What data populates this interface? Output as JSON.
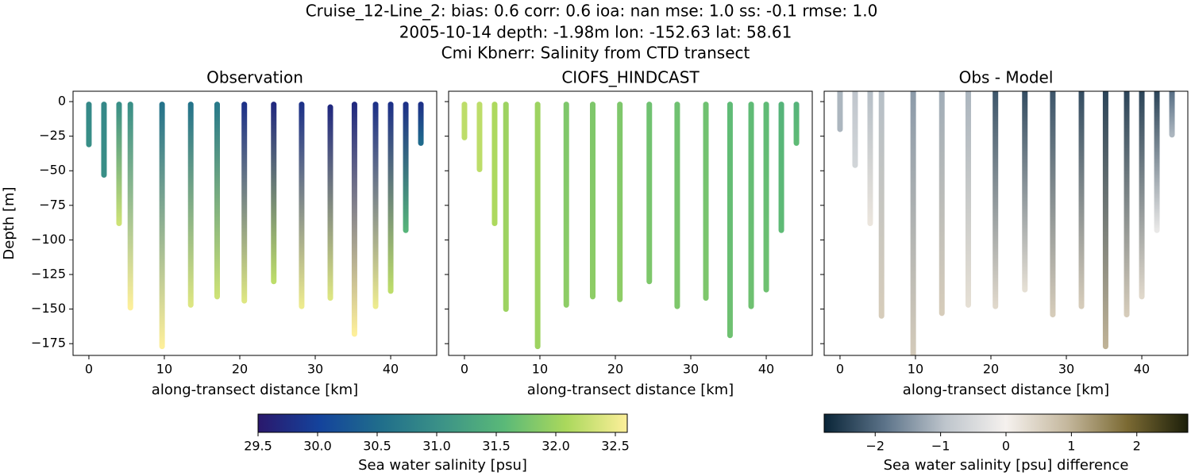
{
  "suptitle": [
    "Cruise_12-Line_2: bias: 0.6  corr: 0.6  ioa: nan  mse: 1.0  ss: -0.1  rmse: 1.0",
    "2005-10-14 depth: -1.98m lon: -152.63 lat: 58.61",
    "Cmi Kbnerr: Salinity from CTD transect"
  ],
  "colorbars": [
    {
      "label": "Sea water salinity [psu]",
      "lim": [
        29.5,
        32.6
      ],
      "colors": [
        "#2a186c",
        "#14439c",
        "#206e8b",
        "#3c9387",
        "#5ab978",
        "#aad85c",
        "#fdef9a"
      ],
      "ticks": [
        29.5,
        {
          "value": 30,
          "label": "30.0"
        },
        30.5,
        {
          "value": 31,
          "label": "31.0"
        },
        31.5,
        {
          "value": 32,
          "label": "32.0"
        },
        32.5
      ]
    },
    {
      "label": "Sea water salinity [psu] difference",
      "lim": [
        -2.78,
        2.78
      ],
      "colors": [
        "#0a2538",
        "#5c7389",
        "#bec5cc",
        "#f5f1ee",
        "#c5b89e",
        "#7b6a33",
        "#1c1f0a"
      ],
      "ticks": [
        {
          "value": -2,
          "label": "−2"
        },
        {
          "value": -1,
          "label": "−1"
        },
        0,
        1,
        2
      ]
    }
  ],
  "chart_data": [
    {
      "type": "scatter",
      "title": "Observation",
      "xlabel": "along-transect distance [km]",
      "ylabel": "Depth [m]",
      "colorbar": 0,
      "x": [
        0,
        2,
        4,
        5.5,
        9.7,
        13.5,
        17,
        20.6,
        24.5,
        28.2,
        32,
        35.2,
        38,
        40,
        42,
        44
      ],
      "top": [
        -2,
        -2,
        -2,
        -2,
        -2,
        -2,
        -2,
        -2,
        -2,
        -2,
        -4,
        -2,
        -2,
        -2,
        -2,
        -2
      ],
      "bottom": [
        -31,
        -53,
        -88,
        -149,
        -177,
        -147,
        -141,
        -144,
        -130,
        -148,
        -142,
        -168,
        -148,
        -137,
        -93,
        -30
      ],
      "values_top": [
        30.9,
        30.9,
        31.0,
        31.0,
        30.6,
        30.6,
        30.7,
        29.8,
        29.7,
        29.8,
        29.7,
        29.7,
        29.8,
        29.8,
        29.8,
        29.8
      ],
      "values_bottom": [
        31.0,
        31.0,
        32.3,
        32.6,
        32.6,
        32.4,
        32.3,
        32.4,
        32.2,
        32.5,
        32.4,
        32.6,
        32.5,
        32.2,
        31.5,
        30.5
      ],
      "xlim": [
        -2.1,
        46.1
      ],
      "ylim": [
        -183.5,
        7.5
      ],
      "xticks": [
        0,
        10,
        20,
        30,
        40
      ],
      "yticks": [
        0,
        {
          "value": -25,
          "label": "−25"
        },
        {
          "value": -50,
          "label": "−50"
        },
        {
          "value": -75,
          "label": "−75"
        },
        {
          "value": -100,
          "label": "−100"
        },
        {
          "value": -125,
          "label": "−125"
        },
        {
          "value": -150,
          "label": "−150"
        },
        {
          "value": -175,
          "label": "−175"
        }
      ]
    },
    {
      "type": "scatter",
      "title": "CIOFS_HINDCAST",
      "xlabel": "along-transect distance [km]",
      "colorbar": 0,
      "x": [
        0,
        2,
        4,
        5.5,
        9.7,
        13.5,
        17,
        20.6,
        24.5,
        28.2,
        32,
        35.2,
        38,
        40,
        42,
        44
      ],
      "top": [
        -2,
        -2,
        -2,
        -2,
        -2,
        -2,
        -2,
        -2,
        -2,
        -2,
        -2,
        -2,
        -2,
        -2,
        -2,
        -2
      ],
      "bottom": [
        -26,
        -49,
        -88,
        -150,
        -177,
        -147,
        -141,
        -143,
        -130,
        -148,
        -142,
        -169,
        -148,
        -136,
        -93,
        -30
      ],
      "values_top": [
        32.2,
        32.2,
        32.1,
        32.0,
        32.0,
        31.8,
        31.8,
        31.8,
        31.7,
        31.7,
        31.7,
        31.6,
        31.6,
        31.6,
        31.5,
        31.5
      ],
      "values_bottom": [
        32.2,
        32.2,
        32.1,
        32.0,
        32.0,
        31.9,
        31.9,
        31.9,
        31.8,
        31.8,
        31.8,
        31.7,
        31.7,
        31.7,
        31.6,
        31.6
      ],
      "xlim": [
        -2.1,
        46.1
      ],
      "ylim": [
        -183.5,
        7.5
      ],
      "xticks": [
        0,
        10,
        20,
        30,
        40
      ],
      "yticks": [
        0,
        -25,
        -50,
        -75,
        -100,
        -125,
        -150,
        -175
      ]
    },
    {
      "type": "scatter",
      "title": "Obs - Model",
      "xlabel": "along-transect distance [km]",
      "colorbar": 1,
      "x": [
        0,
        2,
        4,
        5.5,
        9.7,
        13.5,
        17,
        20.6,
        24.5,
        28.2,
        32,
        35.2,
        38,
        40,
        42,
        44
      ],
      "top": [
        7,
        7,
        7,
        7,
        7,
        7,
        7,
        7,
        7,
        7,
        7,
        7,
        7,
        7,
        7,
        7
      ],
      "bottom": [
        -20,
        -46,
        -88,
        -155,
        -190,
        -153,
        -147,
        -148,
        -136,
        -154,
        -148,
        -177,
        -154,
        -141,
        -93,
        -24
      ],
      "values_top": [
        -1.1,
        -0.9,
        -1.0,
        -1.0,
        -1.4,
        -1.2,
        -1.1,
        -2.2,
        -2.3,
        -2.2,
        -2.3,
        -2.4,
        -2.4,
        -2.4,
        -2.4,
        -1.9
      ],
      "values_bottom": [
        -1.1,
        -0.6,
        0.2,
        0.6,
        0.6,
        0.6,
        0.3,
        0.4,
        0.3,
        0.6,
        0.6,
        1.0,
        0.6,
        0.4,
        -0.2,
        -1.1
      ],
      "xlim": [
        -2.1,
        46.1
      ],
      "ylim": [
        -183.5,
        7.5
      ],
      "xticks": [
        0,
        10,
        20,
        30,
        40
      ],
      "yticks": [
        0,
        -25,
        -50,
        -75,
        -100,
        -125,
        -150,
        -175
      ]
    }
  ]
}
